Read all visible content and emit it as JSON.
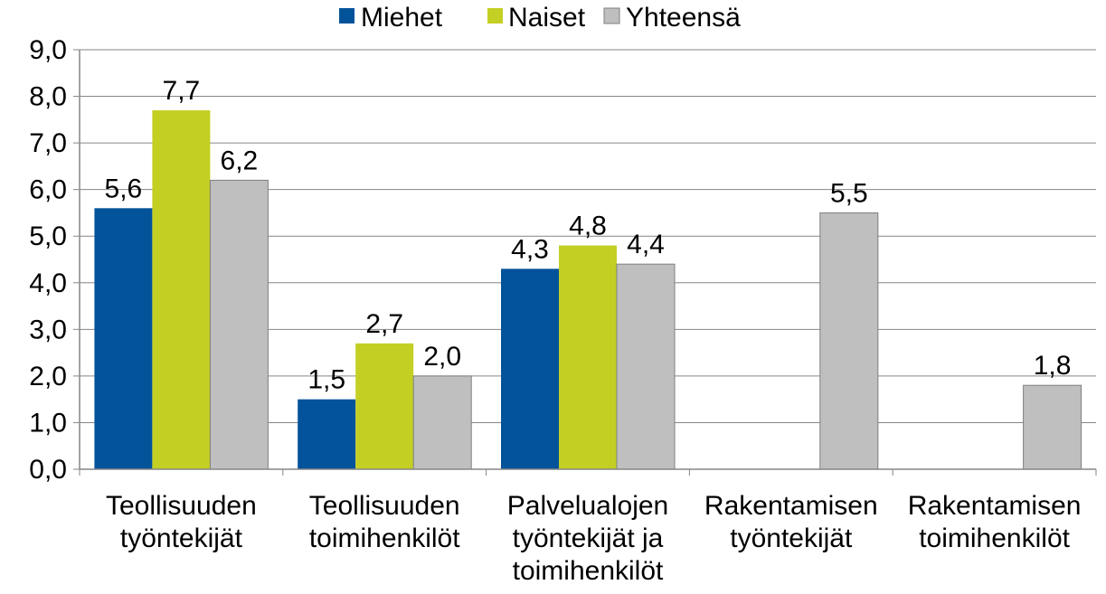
{
  "chart_data": {
    "type": "bar",
    "categories": [
      [
        "Teollisuuden",
        "työntekijät"
      ],
      [
        "Teollisuuden",
        "toimihenkilöt"
      ],
      [
        "Palvelualojen",
        "työntekijät ja",
        "toimihenkilöt"
      ],
      [
        "Rakentamisen",
        "työntekijät"
      ],
      [
        "Rakentamisen",
        "toimihenkilöt"
      ]
    ],
    "series": [
      {
        "name": "Miehet",
        "color": "#03539b",
        "values": [
          5.6,
          1.5,
          4.3,
          null,
          null
        ],
        "labels": [
          "5,6",
          "1,5",
          "4,3",
          "",
          ""
        ]
      },
      {
        "name": "Naiset",
        "color": "#c4cf24",
        "values": [
          7.7,
          2.7,
          4.8,
          null,
          null
        ],
        "labels": [
          "7,7",
          "2,7",
          "4,8",
          "",
          ""
        ]
      },
      {
        "name": "Yhteensä",
        "color": "#bfbfbf",
        "values": [
          6.2,
          2.0,
          4.4,
          5.5,
          1.8
        ],
        "labels": [
          "6,2",
          "2,0",
          "4,4",
          "5,5",
          "1,8"
        ]
      }
    ],
    "y_ticks": [
      "0,0",
      "1,0",
      "2,0",
      "3,0",
      "4,0",
      "5,0",
      "6,0",
      "7,0",
      "8,0",
      "9,0"
    ],
    "ylim": [
      0,
      9
    ],
    "grid": true,
    "legend_position": "top-center"
  }
}
